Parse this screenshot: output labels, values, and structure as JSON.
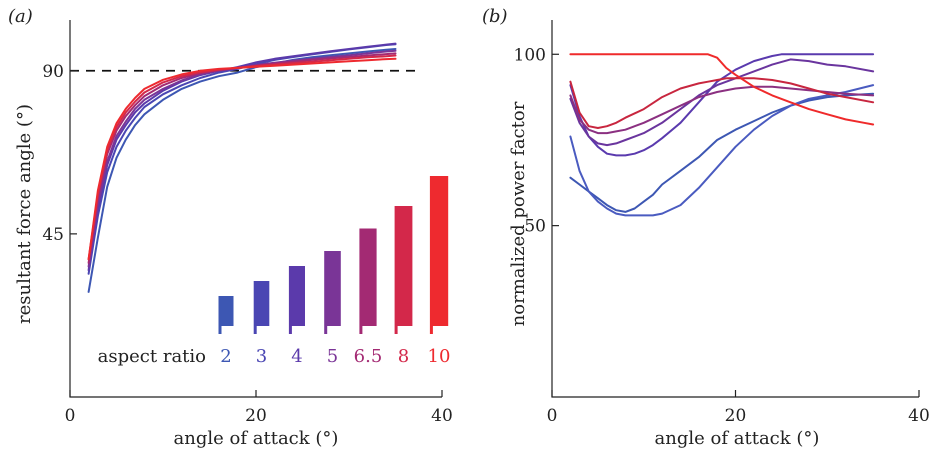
{
  "chart_data": [
    {
      "type": "line",
      "panel_label": "(a)",
      "xlabel": "angle of attack (°)",
      "ylabel": "resultant force angle (°)",
      "xlim": [
        0,
        40
      ],
      "ylim": [
        0,
        104
      ],
      "xticks": [
        "0",
        "20",
        "40"
      ],
      "yticks": [
        "45",
        "90"
      ],
      "reference_line": {
        "y": 90,
        "style": "dashed"
      },
      "series": [
        {
          "name": "2",
          "color": "#3d57b3",
          "x": [
            2,
            3,
            4,
            5,
            6,
            7,
            8,
            10,
            12,
            14,
            16,
            18,
            20,
            22,
            24,
            26,
            28,
            30,
            32,
            34,
            35
          ],
          "y": [
            29,
            44,
            58,
            66,
            71,
            75,
            78,
            82,
            85,
            87,
            88.5,
            89.5,
            91,
            92,
            93,
            93.7,
            94.3,
            94.8,
            95.3,
            95.8,
            96
          ]
        },
        {
          "name": "3",
          "color": "#4a46b3",
          "x": [
            2,
            3,
            4,
            5,
            6,
            7,
            8,
            10,
            12,
            14,
            16,
            18,
            20,
            22,
            24,
            26,
            28,
            30,
            32,
            34,
            35
          ],
          "y": [
            34,
            50,
            62,
            69,
            73.5,
            77,
            80,
            83.5,
            86,
            88,
            89.5,
            90.5,
            91.8,
            93,
            93.8,
            94.5,
            95.2,
            95.9,
            96.5,
            97.1,
            97.3
          ]
        },
        {
          "name": "4",
          "color": "#5b3aab",
          "x": [
            2,
            3,
            4,
            5,
            6,
            7,
            8,
            10,
            12,
            14,
            16,
            18,
            20,
            22,
            24,
            26,
            28,
            30,
            32,
            34,
            35
          ],
          "y": [
            35,
            52,
            64,
            71,
            75,
            78.5,
            81,
            84.5,
            87,
            88.8,
            90,
            91,
            92.3,
            93.3,
            94,
            94.7,
            95.4,
            96,
            96.6,
            97.2,
            97.5
          ]
        },
        {
          "name": "5",
          "color": "#7a3597",
          "x": [
            2,
            3,
            4,
            5,
            6,
            7,
            8,
            10,
            12,
            14,
            16,
            18,
            20,
            22,
            24,
            26,
            28,
            30,
            32,
            34,
            35
          ],
          "y": [
            36,
            53,
            65,
            72,
            76,
            79.5,
            82,
            85,
            87.3,
            89,
            90,
            90.7,
            91.6,
            92.2,
            92.8,
            93.3,
            93.8,
            94.3,
            94.8,
            95.3,
            95.5
          ]
        },
        {
          "name": "6.5",
          "color": "#a32a73",
          "x": [
            2,
            3,
            4,
            5,
            6,
            7,
            8,
            10,
            12,
            14,
            16,
            18,
            20,
            22,
            24,
            26,
            28,
            30,
            32,
            34,
            35
          ],
          "y": [
            37,
            55,
            67,
            73.5,
            77.5,
            80.5,
            83,
            86,
            88,
            89.3,
            90.2,
            90.8,
            91.4,
            92,
            92.5,
            93,
            93.4,
            93.8,
            94.2,
            94.6,
            94.8
          ]
        },
        {
          "name": "8",
          "color": "#d3284a",
          "x": [
            2,
            3,
            4,
            5,
            6,
            7,
            8,
            10,
            12,
            14,
            16,
            18,
            20,
            22,
            24,
            26,
            28,
            30,
            32,
            34,
            35
          ],
          "y": [
            38,
            56,
            68,
            74.5,
            78.5,
            81.5,
            84,
            86.8,
            88.5,
            89.6,
            90.3,
            90.8,
            91.3,
            91.7,
            92.1,
            92.5,
            92.9,
            93.3,
            93.7,
            94,
            94.2
          ]
        },
        {
          "name": "10",
          "color": "#ee2a2f",
          "x": [
            2,
            3,
            4,
            5,
            6,
            7,
            8,
            10,
            12,
            14,
            16,
            18,
            20,
            22,
            24,
            26,
            28,
            30,
            32,
            34,
            35
          ],
          "y": [
            38,
            57,
            69,
            75.5,
            79.5,
            82.5,
            85,
            87.5,
            89,
            90,
            90.5,
            90.8,
            91.1,
            91.4,
            91.7,
            92,
            92.3,
            92.6,
            92.9,
            93.2,
            93.3
          ]
        }
      ],
      "inset_legend": {
        "title": "aspect ratio",
        "entries": [
          {
            "label": "2",
            "color": "#3d57b3",
            "value": 2
          },
          {
            "label": "3",
            "color": "#4a46b3",
            "value": 3
          },
          {
            "label": "4",
            "color": "#5b3aab",
            "value": 4
          },
          {
            "label": "5",
            "color": "#7a3597",
            "value": 5
          },
          {
            "label": "6.5",
            "color": "#a32a73",
            "value": 6.5
          },
          {
            "label": "8",
            "color": "#d3284a",
            "value": 8
          },
          {
            "label": "10",
            "color": "#ee2a2f",
            "value": 10
          }
        ]
      }
    },
    {
      "type": "line",
      "panel_label": "(b)",
      "xlabel": "angle of attack (°)",
      "ylabel": "normalized power factor",
      "xlim": [
        0,
        40
      ],
      "ylim": [
        0,
        110
      ],
      "xticks": [
        "0",
        "20",
        "40"
      ],
      "yticks": [
        "50",
        "100"
      ],
      "series": [
        {
          "name": "2",
          "color": "#3d57b3",
          "width": 1.6,
          "x": [
            2,
            3,
            4,
            5,
            6,
            7,
            8,
            9,
            10,
            11,
            12,
            14,
            16,
            18,
            20,
            22,
            24,
            26,
            28,
            30,
            32,
            35
          ],
          "y": [
            64,
            62,
            60,
            58,
            56,
            54.5,
            54,
            55,
            57,
            59,
            62,
            66,
            70,
            75,
            78,
            80.5,
            83,
            85,
            86.5,
            87.5,
            88,
            88.5
          ]
        },
        {
          "name": "3",
          "color": "#4a5bc0",
          "width": 1.6,
          "x": [
            2,
            3,
            4,
            5,
            6,
            7,
            8,
            9,
            10,
            11,
            12,
            14,
            16,
            18,
            20,
            22,
            24,
            26,
            28,
            30,
            32,
            35
          ],
          "y": [
            76,
            66,
            60,
            57,
            55,
            53.5,
            53,
            53,
            53,
            53,
            53.5,
            56,
            61,
            67,
            73,
            78,
            82,
            85,
            87,
            88,
            89,
            91
          ]
        },
        {
          "name": "4",
          "color": "#5a3aae",
          "width": 3.2,
          "x": [
            2,
            3,
            4,
            5,
            6,
            7,
            8,
            9,
            10,
            11,
            12,
            14,
            16,
            18,
            20,
            22,
            24,
            25,
            26,
            28,
            30,
            32,
            35
          ],
          "y": [
            91,
            82,
            76,
            73,
            71,
            70.5,
            70.5,
            71,
            72,
            73.5,
            75.5,
            80,
            86,
            92,
            95.5,
            98,
            99.5,
            100,
            100,
            100,
            100,
            100,
            100
          ]
        },
        {
          "name": "5",
          "color": "#6a359e",
          "width": 1.6,
          "x": [
            2,
            3,
            4,
            5,
            6,
            7,
            8,
            10,
            12,
            14,
            16,
            18,
            20,
            22,
            24,
            26,
            28,
            30,
            32,
            35
          ],
          "y": [
            87,
            80,
            76,
            74,
            73.5,
            74,
            75,
            77,
            80,
            84,
            88,
            91,
            93,
            95,
            97,
            98.5,
            98,
            97,
            96.5,
            95
          ]
        },
        {
          "name": "6.5",
          "color": "#8b3081",
          "width": 1.6,
          "x": [
            2,
            3,
            4,
            5,
            6,
            7,
            8,
            10,
            12,
            14,
            16,
            18,
            20,
            22,
            24,
            26,
            28,
            30,
            32,
            35
          ],
          "y": [
            88,
            81,
            78,
            77,
            77,
            77.5,
            78,
            80,
            82.5,
            85,
            87.5,
            89,
            90,
            90.5,
            90.5,
            90,
            89.5,
            89,
            88.5,
            88
          ]
        },
        {
          "name": "8",
          "color": "#c8263f",
          "width": 1.6,
          "x": [
            2,
            3,
            4,
            5,
            6,
            7,
            8,
            10,
            12,
            14,
            16,
            17,
            18,
            19,
            20,
            22,
            24,
            26,
            28,
            30,
            32,
            35
          ],
          "y": [
            92,
            83,
            79,
            78.5,
            79,
            80,
            81.5,
            84,
            87.5,
            90,
            91.5,
            92,
            92.5,
            93,
            93,
            93,
            92.5,
            91.5,
            90,
            88.5,
            87.5,
            86
          ]
        },
        {
          "name": "10",
          "color": "#ef2a2b",
          "width": 3.2,
          "x": [
            2,
            4,
            6,
            8,
            10,
            12,
            14,
            16,
            17,
            18,
            19,
            20,
            22,
            24,
            26,
            28,
            30,
            32,
            34,
            35
          ],
          "y": [
            100,
            100,
            100,
            100,
            100,
            100,
            100,
            100,
            100,
            99,
            96,
            94,
            90.5,
            88,
            86,
            84,
            82.5,
            81,
            80,
            79.5
          ]
        }
      ]
    }
  ]
}
